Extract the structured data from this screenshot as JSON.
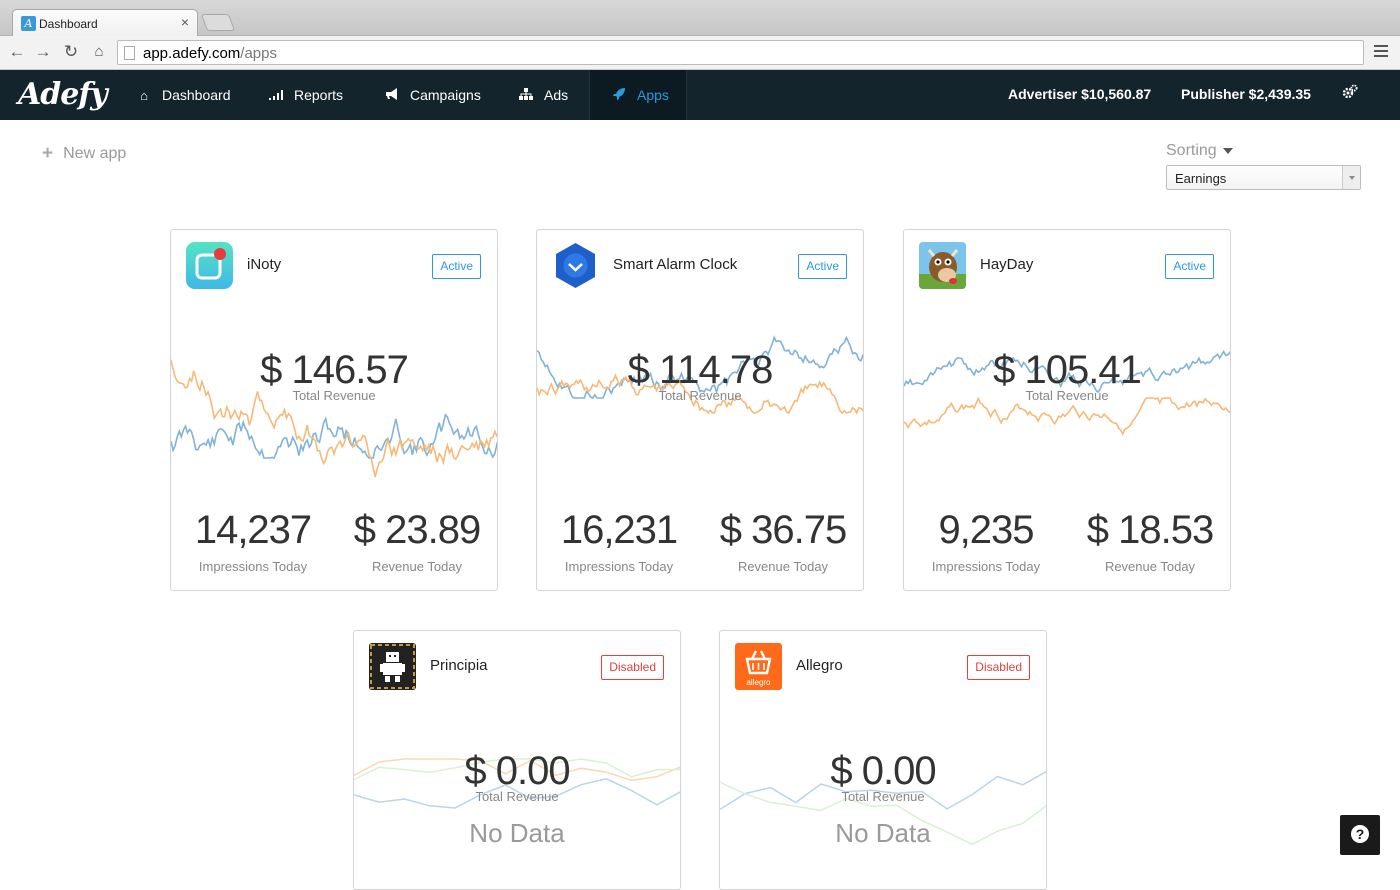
{
  "browser": {
    "tab_title": "Dashboard",
    "tab_close": "×",
    "url_host": "app.adefy.com",
    "url_path": "/apps"
  },
  "header": {
    "logo": "Adefy",
    "nav": [
      {
        "label": "Dashboard",
        "icon": "home-icon"
      },
      {
        "label": "Reports",
        "icon": "bar-chart-icon"
      },
      {
        "label": "Campaigns",
        "icon": "bullhorn-icon"
      },
      {
        "label": "Ads",
        "icon": "sitemap-icon"
      },
      {
        "label": "Apps",
        "icon": "rocket-icon",
        "active": true
      }
    ],
    "advertiser": "Advertiser $10,560.87",
    "publisher": "Publisher $2,439.35",
    "settings_icon": "gears-icon"
  },
  "controls": {
    "new_app": "New app",
    "sorting_label": "Sorting",
    "sorting_value": "Earnings"
  },
  "apps": [
    {
      "name": "iNoty",
      "status": "Active",
      "total_revenue": "$ 146.57",
      "total_label": "Total Revenue",
      "impressions": "14,237",
      "impressions_label": "Impressions Today",
      "revenue_today": "$ 23.89",
      "revenue_label": "Revenue Today"
    },
    {
      "name": "Smart Alarm Clock",
      "status": "Active",
      "total_revenue": "$ 114.78",
      "total_label": "Total Revenue",
      "impressions": "16,231",
      "impressions_label": "Impressions Today",
      "revenue_today": "$ 36.75",
      "revenue_label": "Revenue Today"
    },
    {
      "name": "HayDay",
      "status": "Active",
      "total_revenue": "$ 105.41",
      "total_label": "Total Revenue",
      "impressions": "9,235",
      "impressions_label": "Impressions Today",
      "revenue_today": "$ 18.53",
      "revenue_label": "Revenue Today"
    },
    {
      "name": "Principia",
      "status": "Disabled",
      "total_revenue": "$ 0.00",
      "total_label": "Total Revenue",
      "no_data": "No Data"
    },
    {
      "name": "Allegro",
      "status": "Disabled",
      "total_revenue": "$ 0.00",
      "total_label": "Total Revenue",
      "no_data": "No Data",
      "icon_text": "allegro"
    }
  ],
  "colors": {
    "accent": "#2b9be0",
    "active": "#2b9be0",
    "disabled": "#e0423e",
    "header_bg": "#14242c",
    "blue_line": "#7fb3d9",
    "orange_line": "#f7b977",
    "green_line": "#b8e6b4"
  },
  "help_icon": "question-icon",
  "help_text": "?"
}
